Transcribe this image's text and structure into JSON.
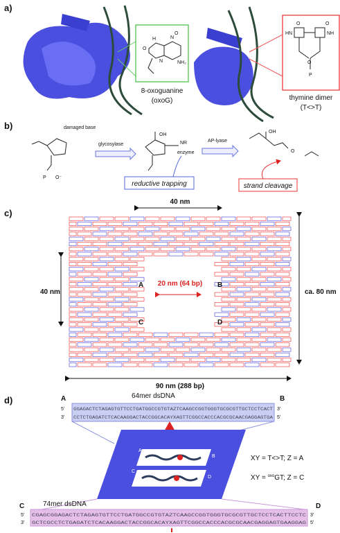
{
  "panel_a": {
    "label": "a)",
    "oxog_name": "8-oxoguanine",
    "oxog_abbr": "(oxoG)",
    "dimer_name": "thymine dimer",
    "dimer_abbr": "(T<>T)",
    "oxog_atoms": [
      "O",
      "H",
      "N",
      "NH₂",
      "O",
      "N"
    ],
    "dimer_atoms": [
      "HN",
      "O",
      "O",
      "NH",
      "O",
      "P"
    ]
  },
  "panel_b": {
    "label": "b)",
    "damaged_base": "damaged base",
    "glycosylase": "glycosylase",
    "ap_lyase": "AP-lyase",
    "reductive_trapping": "reductive trapping",
    "strand_cleavage": "strand cleavage",
    "oh": "OH",
    "nr": "NR",
    "enzyme": "enzyme",
    "aldehyde_o": "O",
    "o_minus": "O⁻",
    "p": "P"
  },
  "panel_c": {
    "label": "c)",
    "top_width": "40 nm",
    "gap": "20 nm (64 bp)",
    "left_height": "40 nm",
    "right_height": "ca. 80 nm",
    "bottom_width": "90 nm (288 bp)",
    "corners": [
      "A",
      "B",
      "C",
      "D"
    ]
  },
  "panel_d": {
    "label": "d)",
    "top_left": "A",
    "top_right": "B",
    "top_title": "64mer dsDNA",
    "five": "5'",
    "three": "3'",
    "top_strand": "GGAGACTCTAGAGTGTTCCTGATGGCCGTGTAZTCAAGCCGGTGGGTGCGCGTTGCTCCTCACT",
    "top_complement": "CCTCTGAGATCTCACAAGGACTACCGGCACAYXAGTTCGGCCACCCACGCGCAACGAGGAGTGA",
    "legend_1": "XY = T<>T; Z = A",
    "legend_2": {
      "xy": "XY = ",
      "sup": "oxo",
      "tail": "GT; Z = C"
    },
    "bottom_left": "C",
    "bottom_right": "D",
    "bottom_title": "74mer dsDNA",
    "bottom_strand": "CGAGCGGAGACTCTAGAGTGTTCCTGATGGCCGTGTAZTCAAGCCGGTGGGTGCGCGTTGCTCCTCACTTCCTC",
    "bottom_complement": "GCTCGCCTCTGAGATCTCACAAGGACTACCGGCACAYXAGTTCGGCCACCCACGCGCAACGAGGAGTGAAGGAG",
    "inset_labels": [
      "A",
      "B",
      "C",
      "D"
    ]
  }
}
